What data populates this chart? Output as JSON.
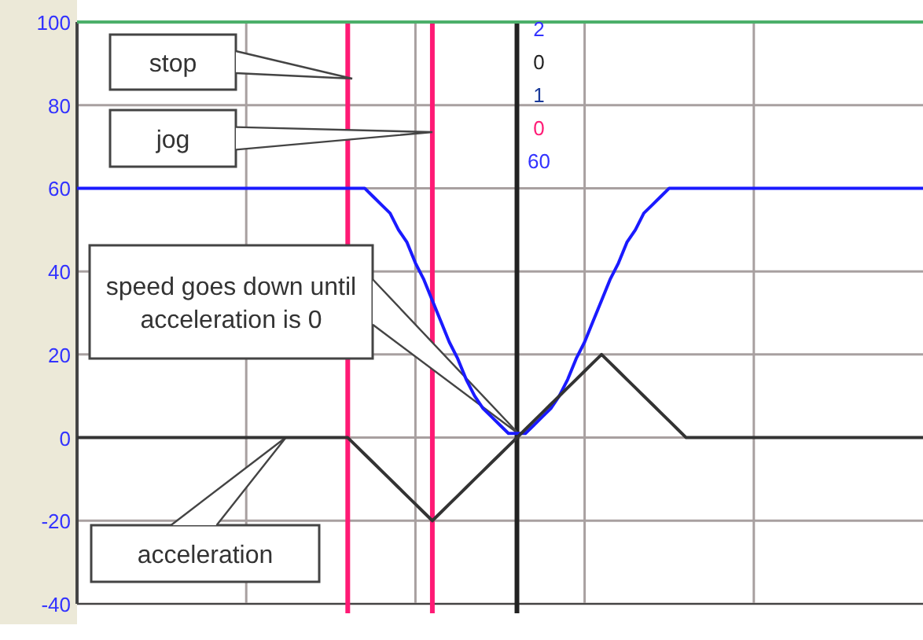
{
  "chart_data": {
    "type": "line",
    "categories": [
      null,
      null,
      null,
      null,
      null,
      null,
      null,
      null,
      null,
      null,
      null,
      null,
      null,
      null,
      null,
      null,
      null,
      null,
      null,
      null,
      null,
      null,
      null,
      null,
      null,
      null,
      null,
      null,
      null,
      null,
      null,
      null,
      null,
      null,
      null,
      null,
      null,
      null,
      null,
      null,
      null,
      null,
      null,
      null,
      null,
      null,
      null,
      null,
      null,
      null,
      null,
      null,
      null,
      null,
      null,
      null,
      null,
      null,
      null,
      null,
      null,
      null,
      null,
      null,
      null,
      null,
      null,
      null,
      null,
      null,
      null,
      null,
      null,
      null,
      null,
      null,
      null,
      null,
      null,
      null,
      null,
      null,
      null,
      null,
      null,
      null,
      null,
      null,
      null,
      null,
      null,
      null,
      null,
      null,
      null,
      null,
      null,
      null,
      null,
      null,
      null
    ],
    "series": [
      {
        "color": "#1a1aff",
        "values": [
          60,
          60,
          60,
          60,
          60,
          60,
          60,
          60,
          60,
          60,
          60,
          60,
          60,
          60,
          60,
          60,
          60,
          60,
          60,
          60,
          60,
          60,
          60,
          60,
          60,
          60,
          60,
          60,
          60,
          60,
          60,
          60,
          60,
          60,
          60,
          58,
          56,
          54,
          50,
          47,
          42,
          38,
          33,
          28,
          23,
          19,
          14,
          10,
          7,
          5,
          3,
          1,
          1,
          1,
          3,
          5,
          7,
          10,
          14,
          19,
          23,
          28,
          33,
          38,
          42,
          47,
          50,
          54,
          56,
          58,
          60,
          60,
          60,
          60,
          60,
          60,
          60,
          60,
          60,
          60,
          60,
          60,
          60,
          60,
          60,
          60,
          60,
          60,
          60,
          60,
          60,
          60,
          60,
          60,
          60,
          60,
          60,
          60,
          60,
          60,
          60
        ]
      },
      {
        "color": "#333333",
        "values": [
          0,
          0,
          0,
          0,
          0,
          0,
          0,
          0,
          0,
          0,
          0,
          0,
          0,
          0,
          0,
          0,
          0,
          0,
          0,
          0,
          0,
          0,
          0,
          0,
          0,
          0,
          0,
          0,
          0,
          0,
          0,
          0,
          0,
          -2,
          -4,
          -6,
          -8,
          -10,
          -12,
          -14,
          -16,
          -18,
          -20,
          -18,
          -16,
          -14,
          -12,
          -10,
          -8,
          -6,
          -4,
          -2,
          0,
          2,
          4,
          6,
          8,
          10,
          12,
          14,
          16,
          18,
          20,
          18,
          16,
          14,
          12,
          10,
          8,
          6,
          4,
          2,
          0,
          0,
          0,
          0,
          0,
          0,
          0,
          0,
          0,
          0,
          0,
          0,
          0,
          0,
          0,
          0,
          0,
          0,
          0,
          0,
          0,
          0,
          0,
          0,
          0,
          0,
          0,
          0,
          0
        ]
      }
    ],
    "ylim": [
      -40,
      100
    ],
    "yticks": [
      -40,
      -20,
      0,
      20,
      40,
      60,
      80,
      100
    ],
    "tick_labels": "y",
    "grid": true,
    "marker": "none",
    "line_style": "solid",
    "ref_lines": [
      {
        "axis": "y",
        "value": 100,
        "color": "#4caf6a"
      }
    ],
    "annotations": [
      "stop",
      "jog",
      "speed goes down until acceleration is 0",
      "acceleration",
      "2",
      "0",
      "1",
      "0",
      "60"
    ]
  }
}
